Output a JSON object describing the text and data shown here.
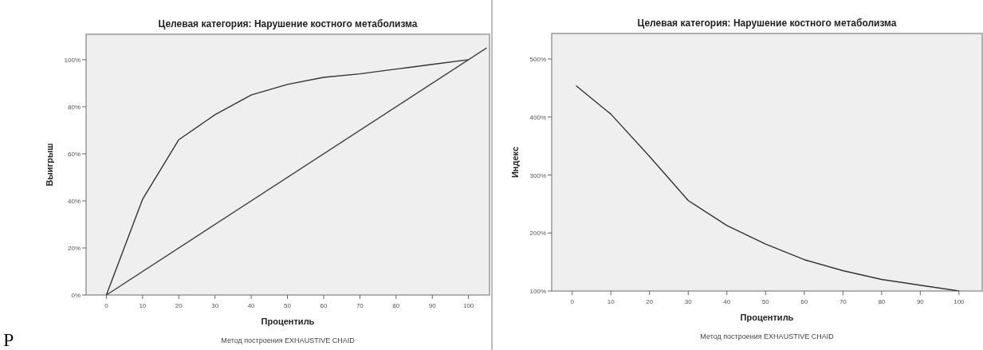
{
  "chart_data": [
    {
      "type": "line",
      "title": "Целевая категория: Нарушение костного метаболизма",
      "xlabel": "Процентиль",
      "ylabel": "Выигрыш",
      "annotations": [
        "Метод построения EXHAUSTIVE CHAID",
        "Р"
      ],
      "series": [
        {
          "color": "#333333",
          "x": [
            0,
            10,
            20,
            30,
            40,
            50,
            60,
            70,
            80,
            90,
            100
          ],
          "values": [
            0,
            40.7,
            66,
            76.6,
            85,
            89.5,
            92.5,
            94,
            96,
            98,
            100
          ]
        },
        {
          "color": "#444444",
          "x": [
            0,
            105
          ],
          "values": [
            0,
            105
          ]
        }
      ],
      "xlim": [
        -5.6,
        105.8
      ],
      "ylim": [
        0,
        110.8
      ],
      "xticks": [
        0,
        10,
        20,
        30,
        40,
        50,
        60,
        70,
        80,
        90,
        100
      ],
      "yticks": [
        {
          "value": 0,
          "label": "0%"
        },
        {
          "value": 20,
          "label": "20%"
        },
        {
          "value": 40,
          "label": "40%"
        },
        {
          "value": 60,
          "label": "60%"
        },
        {
          "value": 80,
          "label": "80%"
        },
        {
          "value": 100,
          "label": "100%"
        }
      ],
      "grid": false,
      "marker": "none",
      "line_style": "solid"
    },
    {
      "type": "line",
      "title": "Целевая категория: Нарушение костного метаболизма",
      "xlabel": "Процентиль",
      "ylabel": "Индекс",
      "annotations": [
        "Метод построения EXHAUSTIVE CHAID"
      ],
      "series": [
        {
          "color": "#333333",
          "x": [
            1,
            10,
            20,
            30,
            40,
            50,
            60,
            70,
            80,
            90,
            100
          ],
          "values": [
            454,
            405,
            332,
            256,
            213,
            181,
            154,
            135,
            120,
            110,
            100
          ]
        }
      ],
      "xlim": [
        -5.3,
        106
      ],
      "ylim": [
        100,
        544
      ],
      "xticks": [
        0,
        10,
        20,
        30,
        40,
        50,
        60,
        70,
        80,
        90,
        100
      ],
      "yticks": [
        {
          "value": 100,
          "label": "100%"
        },
        {
          "value": 200,
          "label": "200%"
        },
        {
          "value": 300,
          "label": "300%"
        },
        {
          "value": 400,
          "label": "400%"
        },
        {
          "value": 500,
          "label": "500%"
        }
      ],
      "grid": false,
      "marker": "none",
      "line_style": "solid"
    }
  ]
}
